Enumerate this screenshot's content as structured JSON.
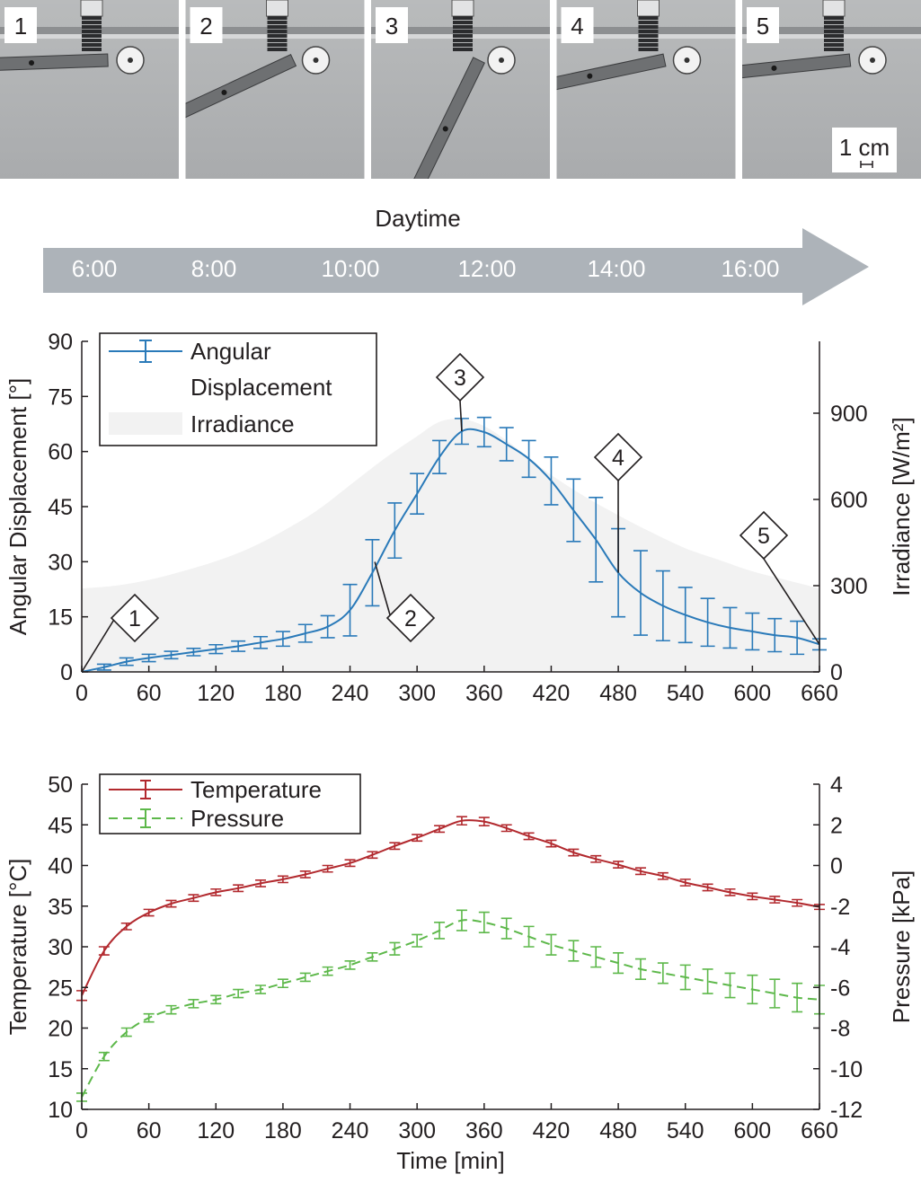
{
  "photos": {
    "panels": [
      {
        "label": "1",
        "angle_deg": 2
      },
      {
        "label": "2",
        "angle_deg": 25
      },
      {
        "label": "3",
        "angle_deg": 64
      },
      {
        "label": "4",
        "angle_deg": 12
      },
      {
        "label": "5",
        "angle_deg": 6
      }
    ],
    "scale_label": "1 cm"
  },
  "timeline": {
    "title": "Daytime",
    "ticks": [
      "6:00",
      "8:00",
      "10:00",
      "12:00",
      "14:00",
      "16:00"
    ]
  },
  "colors": {
    "angular": "#2a7ab9",
    "temperature": "#b2292e",
    "pressure": "#5db84a",
    "irradiance": "#f2f2f2",
    "arrow": "#adb3b9",
    "axis": "#231f20"
  },
  "chart_data": [
    {
      "type": "line",
      "title": "",
      "xlabel": "",
      "xlim": [
        0,
        660
      ],
      "xticks": [
        "0",
        "60",
        "120",
        "180",
        "240",
        "300",
        "360",
        "420",
        "480",
        "540",
        "600",
        "660"
      ],
      "ylabel": "Angular Displacement [°]",
      "ylim": [
        0,
        90
      ],
      "yticks": [
        "0",
        "15",
        "30",
        "45",
        "60",
        "75",
        "90"
      ],
      "y2label": "Irradiance [W/m²]",
      "y2lim": [
        0,
        1150
      ],
      "y2ticks": [
        "0",
        "300",
        "600",
        "900"
      ],
      "legend": [
        "Angular",
        "Displacement",
        "Irradiance"
      ],
      "legend_position": "top-left",
      "series": [
        {
          "name": "Angular Displacement",
          "axis": "left",
          "style": "solid",
          "x": [
            0,
            20,
            40,
            60,
            80,
            100,
            120,
            140,
            160,
            180,
            200,
            220,
            240,
            260,
            280,
            300,
            320,
            340,
            360,
            380,
            400,
            420,
            440,
            460,
            480,
            500,
            520,
            540,
            560,
            580,
            600,
            620,
            640,
            660
          ],
          "values": [
            0,
            1.3,
            2.8,
            3.8,
            4.6,
            5.4,
            6.2,
            7.0,
            8.0,
            9.0,
            10.5,
            12.3,
            16.8,
            27.0,
            38.5,
            48.5,
            58.5,
            65.5,
            65.3,
            62.0,
            58.0,
            52.0,
            44.0,
            36.0,
            27.0,
            21.5,
            18.0,
            15.5,
            13.5,
            12.0,
            11.0,
            10.0,
            9.3,
            7.5
          ],
          "errors": [
            0,
            0.8,
            1.0,
            1.0,
            1.0,
            1.0,
            1.2,
            1.4,
            1.6,
            2.0,
            2.4,
            3.0,
            7.0,
            9.0,
            7.5,
            5.5,
            4.5,
            3.5,
            4.0,
            4.5,
            5.0,
            6.5,
            8.5,
            11.5,
            12.0,
            11.5,
            9.5,
            7.5,
            6.5,
            5.5,
            5.0,
            4.5,
            4.5,
            1.5
          ]
        },
        {
          "name": "Irradiance",
          "axis": "right",
          "style": "area",
          "x": [
            0,
            30,
            60,
            90,
            120,
            150,
            180,
            210,
            240,
            270,
            300,
            320,
            340,
            360,
            380,
            400,
            420,
            450,
            480,
            510,
            540,
            570,
            600,
            630,
            660
          ],
          "values": [
            290,
            300,
            320,
            350,
            385,
            430,
            490,
            560,
            650,
            740,
            820,
            870,
            880,
            855,
            805,
            745,
            685,
            610,
            545,
            485,
            430,
            390,
            350,
            320,
            290
          ]
        }
      ],
      "annotations": [
        {
          "label": "1",
          "x": 0,
          "y": 0
        },
        {
          "label": "2",
          "x": 267,
          "y": 28
        },
        {
          "label": "3",
          "x": 340,
          "y": 65.5
        },
        {
          "label": "4",
          "x": 480,
          "y": 27
        },
        {
          "label": "5",
          "x": 660,
          "y": 7.5
        }
      ]
    },
    {
      "type": "line",
      "title": "",
      "xlabel": "Time [min]",
      "xlim": [
        0,
        660
      ],
      "xticks": [
        "0",
        "60",
        "120",
        "180",
        "240",
        "300",
        "360",
        "420",
        "480",
        "540",
        "600",
        "660"
      ],
      "ylabel": "Temperature [°C]",
      "ylim": [
        10,
        50
      ],
      "yticks": [
        "10",
        "15",
        "20",
        "25",
        "30",
        "35",
        "40",
        "45",
        "50"
      ],
      "y2label": "Pressure [kPa]",
      "y2lim": [
        -12,
        4
      ],
      "y2ticks": [
        "-12",
        "-10",
        "-8",
        "-6",
        "-4",
        "-2",
        "0",
        "2",
        "4"
      ],
      "legend": [
        "Temperature",
        "Pressure"
      ],
      "legend_position": "top-left",
      "series": [
        {
          "name": "Temperature",
          "axis": "left",
          "style": "solid",
          "x": [
            0,
            20,
            40,
            60,
            80,
            100,
            120,
            140,
            160,
            180,
            200,
            220,
            240,
            260,
            280,
            300,
            320,
            340,
            360,
            380,
            400,
            420,
            440,
            460,
            480,
            500,
            520,
            540,
            560,
            580,
            600,
            620,
            640,
            660
          ],
          "values": [
            24.0,
            29.5,
            32.5,
            34.2,
            35.3,
            36.0,
            36.7,
            37.2,
            37.8,
            38.3,
            38.9,
            39.6,
            40.3,
            41.3,
            42.4,
            43.4,
            44.5,
            45.5,
            45.4,
            44.6,
            43.6,
            42.7,
            41.6,
            40.8,
            40.1,
            39.3,
            38.7,
            37.9,
            37.3,
            36.7,
            36.2,
            35.8,
            35.4,
            34.9
          ],
          "errors": [
            0.6,
            0.5,
            0.4,
            0.4,
            0.4,
            0.4,
            0.4,
            0.4,
            0.4,
            0.4,
            0.4,
            0.4,
            0.4,
            0.4,
            0.4,
            0.4,
            0.4,
            0.5,
            0.5,
            0.4,
            0.4,
            0.4,
            0.4,
            0.4,
            0.4,
            0.4,
            0.4,
            0.4,
            0.4,
            0.4,
            0.4,
            0.4,
            0.4,
            0.3
          ]
        },
        {
          "name": "Pressure",
          "axis": "right",
          "style": "dashed",
          "x": [
            0,
            20,
            40,
            60,
            80,
            100,
            120,
            140,
            160,
            180,
            200,
            220,
            240,
            260,
            280,
            300,
            320,
            340,
            360,
            380,
            400,
            420,
            440,
            460,
            480,
            500,
            520,
            540,
            560,
            580,
            600,
            620,
            640,
            660
          ],
          "values": [
            -11.4,
            -9.4,
            -8.2,
            -7.5,
            -7.1,
            -6.8,
            -6.6,
            -6.3,
            -6.1,
            -5.8,
            -5.5,
            -5.2,
            -4.9,
            -4.5,
            -4.1,
            -3.7,
            -3.2,
            -2.7,
            -2.8,
            -3.1,
            -3.5,
            -3.9,
            -4.2,
            -4.5,
            -4.8,
            -5.1,
            -5.3,
            -5.5,
            -5.7,
            -5.9,
            -6.1,
            -6.3,
            -6.5,
            -6.6
          ],
          "errors": [
            0.2,
            0.2,
            0.2,
            0.2,
            0.2,
            0.2,
            0.2,
            0.2,
            0.2,
            0.2,
            0.2,
            0.2,
            0.2,
            0.2,
            0.3,
            0.3,
            0.4,
            0.5,
            0.5,
            0.5,
            0.5,
            0.5,
            0.5,
            0.5,
            0.5,
            0.5,
            0.5,
            0.6,
            0.6,
            0.6,
            0.7,
            0.7,
            0.7,
            0.7
          ]
        }
      ],
      "annotations": []
    }
  ]
}
